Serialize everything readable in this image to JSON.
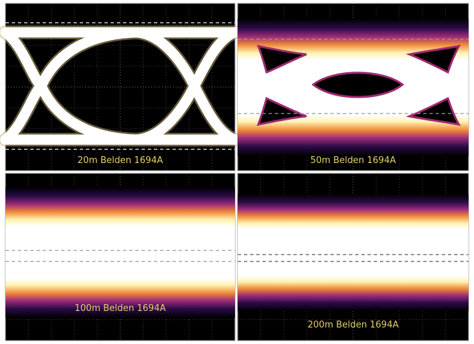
{
  "panels": [
    {
      "label": "20m Belden 1694A"
    },
    {
      "label": "50m Belden 1694A"
    },
    {
      "label": "100m Belden 1694A"
    },
    {
      "label": "200m Belden 1694A"
    }
  ]
}
